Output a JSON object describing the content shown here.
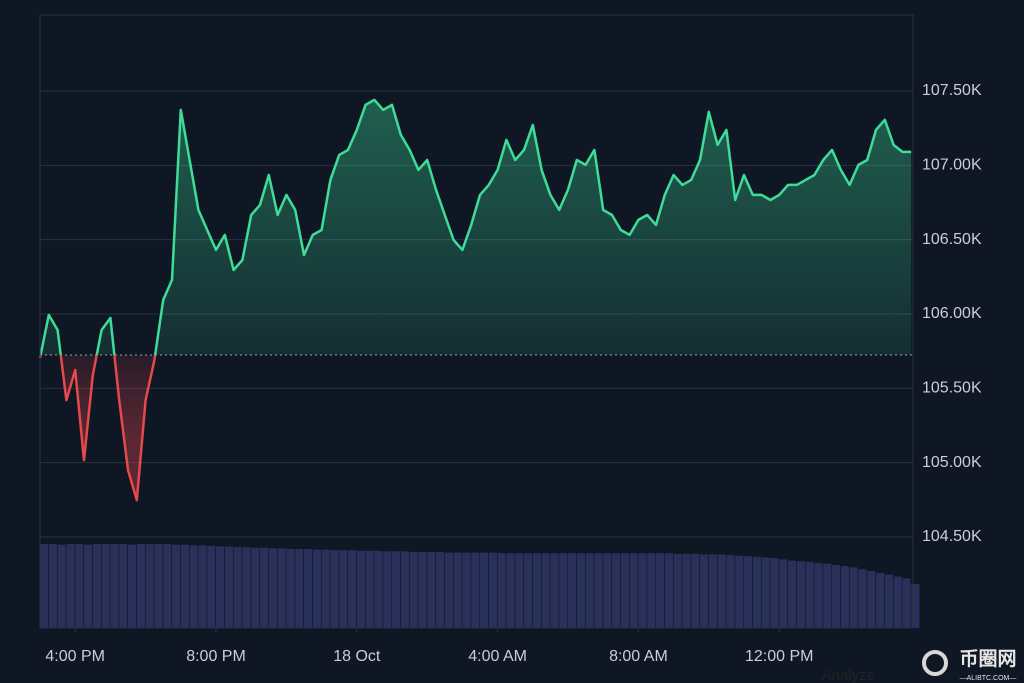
{
  "chart_data": {
    "type": "line",
    "x": [
      15,
      15.25,
      15.5,
      15.75,
      16,
      16.25,
      16.5,
      16.75,
      17,
      17.25,
      17.5,
      17.75,
      18,
      18.25,
      18.5,
      18.75,
      19,
      19.25,
      19.5,
      19.75,
      20,
      20.25,
      20.5,
      20.75,
      21,
      21.25,
      21.5,
      21.75,
      22,
      22.25,
      22.5,
      22.75,
      23,
      23.25,
      23.5,
      23.75,
      24,
      24.25,
      24.5,
      24.75,
      25,
      25.25,
      25.5,
      25.75,
      26,
      26.25,
      26.5,
      26.75,
      27,
      27.25,
      27.5,
      27.75,
      28,
      28.25,
      28.5,
      28.75,
      29,
      29.25,
      29.5,
      29.75,
      30,
      30.25,
      30.5,
      30.75,
      31,
      31.25,
      31.5,
      31.75,
      32,
      32.25,
      32.5,
      32.75,
      33,
      33.25,
      33.5,
      33.75,
      34,
      34.25,
      34.5,
      34.75,
      35,
      35.25,
      35.5,
      35.75,
      36,
      36.25,
      36.5,
      36.75,
      37,
      37.25,
      37.5,
      37.75,
      38,
      38.25,
      38.5,
      38.75,
      39,
      39.25,
      39.5,
      39.75
    ],
    "values": [
      105704,
      105993,
      105892,
      105421,
      105623,
      105017,
      105589,
      105892,
      105973,
      105421,
      104950,
      104748,
      105421,
      105690,
      106094,
      106229,
      107373,
      107036,
      106700,
      106565,
      106431,
      106532,
      106296,
      106363,
      106666,
      106734,
      106935,
      106666,
      106801,
      106700,
      106397,
      106532,
      106565,
      106902,
      107070,
      107104,
      107238,
      107407,
      107440,
      107373,
      107407,
      107205,
      107104,
      106969,
      107036,
      106835,
      106666,
      106498,
      106431,
      106599,
      106801,
      106868,
      106969,
      107171,
      107036,
      107104,
      107272,
      106969,
      106801,
      106700,
      106835,
      107036,
      107003,
      107104,
      106700,
      106666,
      106565,
      106532,
      106633,
      106666,
      106599,
      106801,
      106935,
      106868,
      106902,
      107036,
      107359,
      107137,
      107238,
      106767,
      106935,
      106801,
      106801,
      106767,
      106801,
      106868,
      106868,
      106902,
      106935,
      107036,
      107104,
      106969,
      106868,
      107003,
      107036,
      107238,
      107306,
      107137,
      107090,
      107090
    ],
    "baseline": 105724,
    "volume": [
      13.7,
      13.7,
      13.6,
      13.7,
      13.7,
      13.6,
      13.7,
      13.7,
      13.7,
      13.7,
      13.6,
      13.7,
      13.7,
      13.7,
      13.7,
      13.6,
      13.6,
      13.5,
      13.5,
      13.4,
      13.3,
      13.3,
      13.2,
      13.2,
      13.1,
      13.1,
      13.0,
      13.0,
      12.9,
      12.9,
      12.9,
      12.8,
      12.8,
      12.7,
      12.7,
      12.7,
      12.6,
      12.6,
      12.6,
      12.5,
      12.5,
      12.5,
      12.4,
      12.4,
      12.4,
      12.4,
      12.3,
      12.3,
      12.3,
      12.3,
      12.3,
      12.3,
      12.2,
      12.2,
      12.2,
      12.2,
      12.2,
      12.2,
      12.2,
      12.2,
      12.2,
      12.2,
      12.2,
      12.2,
      12.2,
      12.2,
      12.2,
      12.2,
      12.2,
      12.2,
      12.2,
      12.2,
      12.1,
      12.1,
      12.1,
      12.0,
      12.0,
      12.0,
      11.9,
      11.8,
      11.7,
      11.6,
      11.5,
      11.4,
      11.2,
      11.0,
      10.9,
      10.8,
      10.6,
      10.5,
      10.3,
      10.1,
      9.9,
      9.6,
      9.3,
      9.0,
      8.7,
      8.4,
      8.1,
      7.2
    ],
    "y2lim": [
      0,
      100
    ],
    "xlim": [
      15,
      39.8
    ],
    "xticks": [
      {
        "value": 16,
        "label": "4:00 PM"
      },
      {
        "value": 20,
        "label": "8:00 PM"
      },
      {
        "value": 24,
        "label": "18 Oct"
      },
      {
        "value": 28,
        "label": "4:00 AM"
      },
      {
        "value": 32,
        "label": "8:00 AM"
      },
      {
        "value": 36,
        "label": "12:00 PM"
      }
    ],
    "ylim": [
      103888,
      108011
    ],
    "yticks": [
      {
        "value": 104500,
        "label": "104.50K"
      },
      {
        "value": 105000,
        "label": "105.00K"
      },
      {
        "value": 105500,
        "label": "105.50K"
      },
      {
        "value": 106000,
        "label": "106.00K"
      },
      {
        "value": 106500,
        "label": "106.50K"
      },
      {
        "value": 107000,
        "label": "107.00K"
      },
      {
        "value": 107500,
        "label": "107.50K"
      }
    ],
    "grid": true,
    "up_color": "#3ddc97",
    "down_color": "#e5484d",
    "volume_color": "#29315a"
  },
  "footer": {
    "action": "Analyze",
    "brand": "币圈网",
    "site": "—ALIBTC.COM—"
  }
}
